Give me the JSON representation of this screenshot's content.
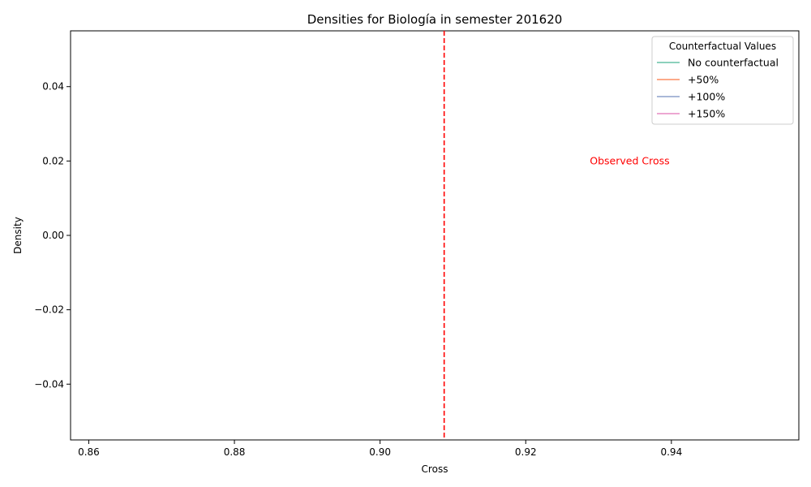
{
  "chart_data": {
    "type": "line",
    "title": "Densities for Biología in semester 201620",
    "xlabel": "Cross",
    "ylabel": "Density",
    "xlim": [
      0.8575,
      0.9575
    ],
    "ylim": [
      -0.055,
      0.055
    ],
    "x_ticks": [
      {
        "value": 0.86,
        "label": "0.86"
      },
      {
        "value": 0.88,
        "label": "0.88"
      },
      {
        "value": 0.9,
        "label": "0.90"
      },
      {
        "value": 0.92,
        "label": "0.92"
      },
      {
        "value": 0.94,
        "label": "0.94"
      }
    ],
    "y_ticks": [
      {
        "value": 0.04,
        "label": "0.04"
      },
      {
        "value": 0.02,
        "label": "0.02"
      },
      {
        "value": 0.0,
        "label": "0.00"
      },
      {
        "value": -0.02,
        "label": "−0.02"
      },
      {
        "value": -0.04,
        "label": "−0.04"
      }
    ],
    "series": [
      {
        "name": "No counterfactual",
        "color": "#66c2a5",
        "x": [],
        "y": []
      },
      {
        "name": "+50%",
        "color": "#fc8d62",
        "x": [],
        "y": []
      },
      {
        "name": "+100%",
        "color": "#8da0cb",
        "x": [],
        "y": []
      },
      {
        "name": "+150%",
        "color": "#e78ac3",
        "x": [],
        "y": []
      }
    ],
    "observed_line": {
      "x": 0.9088,
      "color": "#ff0000",
      "style": "dashed"
    },
    "annotation": {
      "text": "Observed Cross",
      "x": 0.9288,
      "y": 0.02,
      "color": "#ff0000"
    },
    "legend": {
      "title": "Counterfactual Values",
      "placement": "top-right"
    },
    "grid": false
  }
}
